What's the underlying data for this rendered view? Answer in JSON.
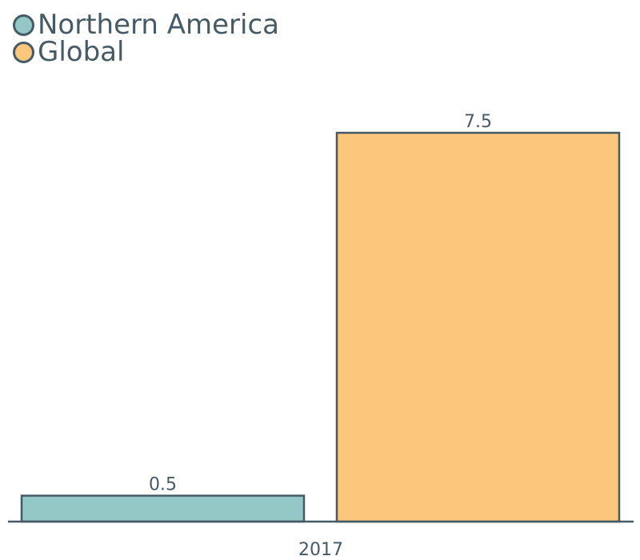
{
  "chart_data": {
    "type": "bar",
    "categories": [
      "2017"
    ],
    "series": [
      {
        "name": "Northern America",
        "values": [
          0.5
        ],
        "color": "#93c8c6"
      },
      {
        "name": "Global",
        "values": [
          7.5
        ],
        "color": "#fac77c"
      }
    ],
    "ylim": [
      0,
      7.5
    ],
    "grid": false,
    "legend_position": "top-left",
    "outline_color": "#455a64"
  }
}
